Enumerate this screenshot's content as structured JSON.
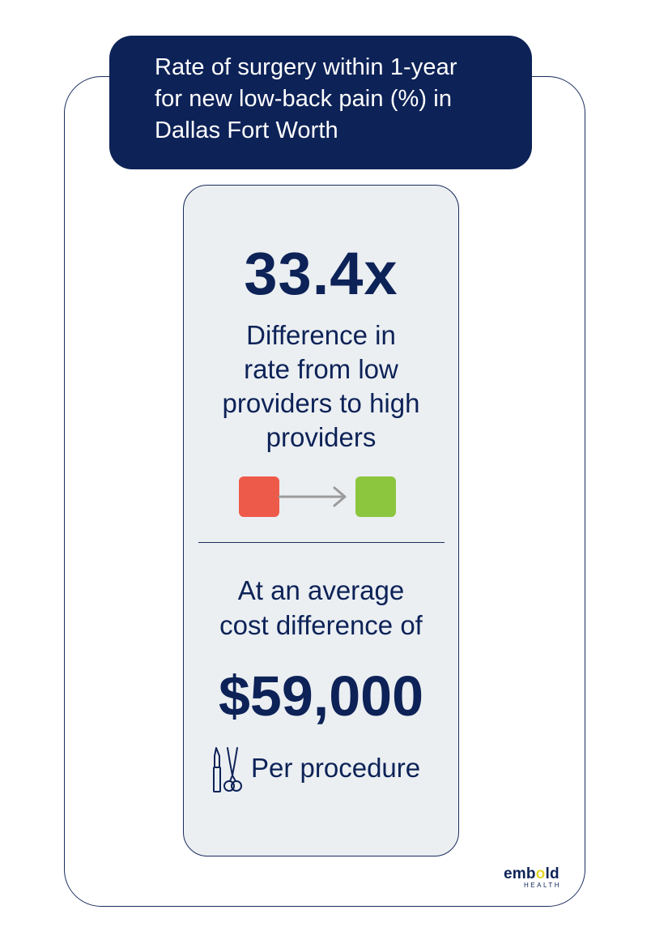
{
  "header": {
    "title_line1": "Rate of surgery within 1-year",
    "title_line2": "for new low-back pain (%) in",
    "title_line3": "Dallas Fort Worth"
  },
  "stat": {
    "multiplier": "33.4x",
    "description_line1": "Difference in",
    "description_line2": "rate from low",
    "description_line3": "providers to high",
    "description_line4": "providers"
  },
  "transition_graphic": {
    "from_color": "#ee5a4a",
    "to_color": "#8cc63f",
    "arrow_color": "#9b9b9b",
    "from_icon": "red-square-icon",
    "to_icon": "green-square-icon",
    "arrow_icon": "arrow-right-icon"
  },
  "cost": {
    "intro_line1": "At an average",
    "intro_line2": "cost difference of",
    "value": "$59,000",
    "per_label": "Per procedure",
    "icon": "surgical-tools-icon"
  },
  "branding": {
    "logo_word_start": "emb",
    "logo_word_accent": "o",
    "logo_word_end": "ld",
    "logo_sub": "HEALTH"
  },
  "colors": {
    "navy": "#0d2257",
    "card_bg": "#ebeff2",
    "accent_yellow": "#e3d62b"
  }
}
